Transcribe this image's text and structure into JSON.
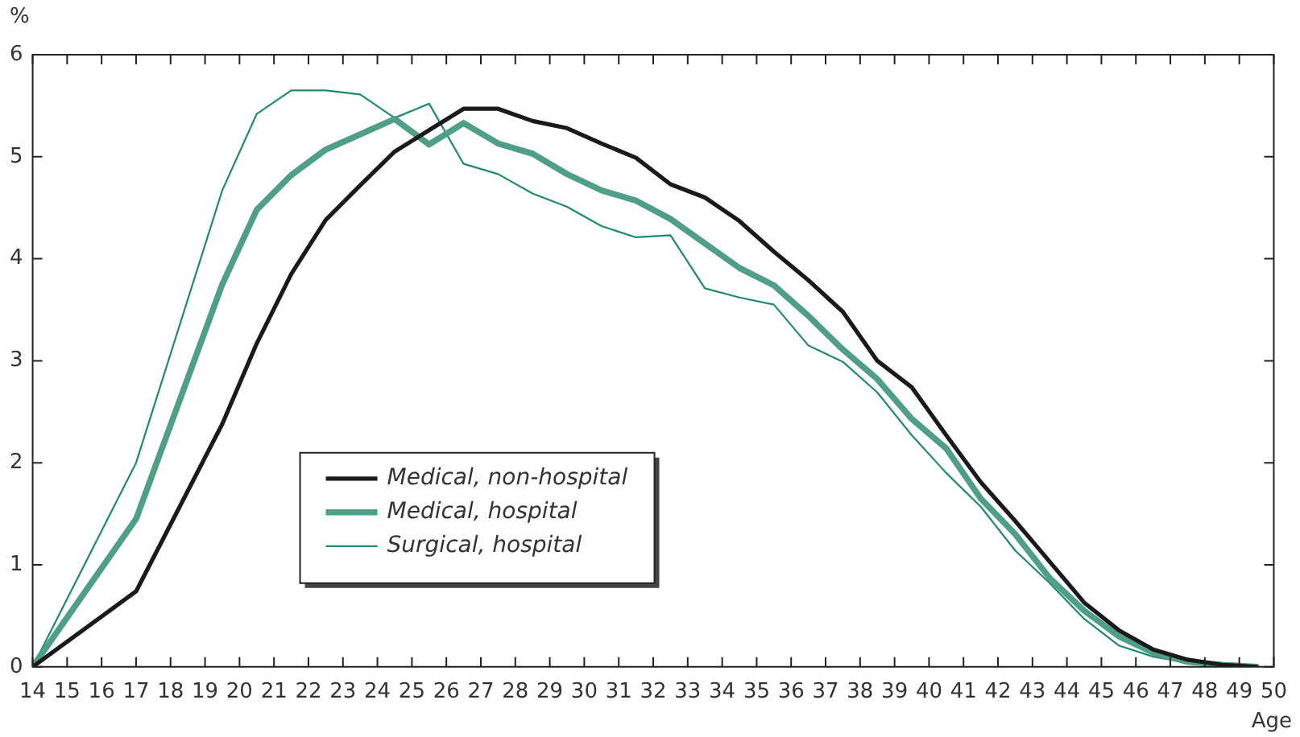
{
  "chart_data": {
    "type": "line",
    "ylabel": "%",
    "xlabel": "Age",
    "xlim": [
      14,
      50
    ],
    "xticks": [
      14,
      15,
      16,
      17,
      18,
      19,
      20,
      21,
      22,
      23,
      24,
      25,
      26,
      27,
      28,
      29,
      30,
      31,
      32,
      33,
      34,
      35,
      36,
      37,
      38,
      39,
      40,
      41,
      42,
      43,
      44,
      45,
      46,
      47,
      48,
      49,
      50
    ],
    "ylim": [
      0,
      6
    ],
    "yticks": [
      0,
      1,
      2,
      3,
      4,
      5,
      6
    ],
    "grid": false,
    "legend": "bottom left",
    "marker": "none",
    "line_style": "solid",
    "x": [
      14,
      17,
      19.5,
      20.5,
      21.5,
      22.5,
      23.5,
      24.5,
      25.5,
      26.5,
      27.5,
      28.5,
      29.5,
      30.5,
      31.5,
      32.5,
      33.5,
      34.5,
      35.5,
      36.5,
      37.5,
      38.5,
      39.5,
      40.5,
      41.5,
      42.5,
      43.5,
      44.5,
      45.5,
      46.5,
      47.5,
      48.5,
      49.5
    ],
    "series": [
      {
        "name": "Medical, non-hospital",
        "color": "#1a1a1a",
        "values": [
          0,
          0.74,
          2.38,
          3.17,
          3.85,
          4.38,
          4.72,
          5.05,
          5.26,
          5.47,
          5.47,
          5.35,
          5.28,
          5.13,
          4.99,
          4.73,
          4.6,
          4.37,
          4.07,
          3.79,
          3.48,
          3.0,
          2.74,
          2.27,
          1.81,
          1.43,
          1.03,
          0.63,
          0.36,
          0.17,
          0.07,
          0.02,
          0
        ]
      },
      {
        "name": "Medical, hospital",
        "color": "#4f9f88",
        "values": [
          0,
          1.45,
          3.75,
          4.48,
          4.82,
          5.07,
          5.22,
          5.37,
          5.12,
          5.33,
          5.13,
          5.03,
          4.83,
          4.67,
          4.57,
          4.39,
          4.15,
          3.91,
          3.74,
          3.44,
          3.11,
          2.82,
          2.43,
          2.14,
          1.65,
          1.3,
          0.87,
          0.55,
          0.3,
          0.14,
          0.05,
          0.02,
          0
        ]
      },
      {
        "name": "Surgical, hospital",
        "color": "#1f8a6e",
        "values": [
          0,
          2.0,
          4.67,
          5.42,
          5.65,
          5.65,
          5.61,
          5.38,
          5.52,
          4.93,
          4.83,
          4.64,
          4.51,
          4.32,
          4.21,
          4.23,
          3.71,
          3.62,
          3.55,
          3.15,
          2.99,
          2.69,
          2.27,
          1.9,
          1.57,
          1.14,
          0.82,
          0.47,
          0.21,
          0.1,
          0.04,
          0.01,
          0
        ]
      }
    ]
  }
}
